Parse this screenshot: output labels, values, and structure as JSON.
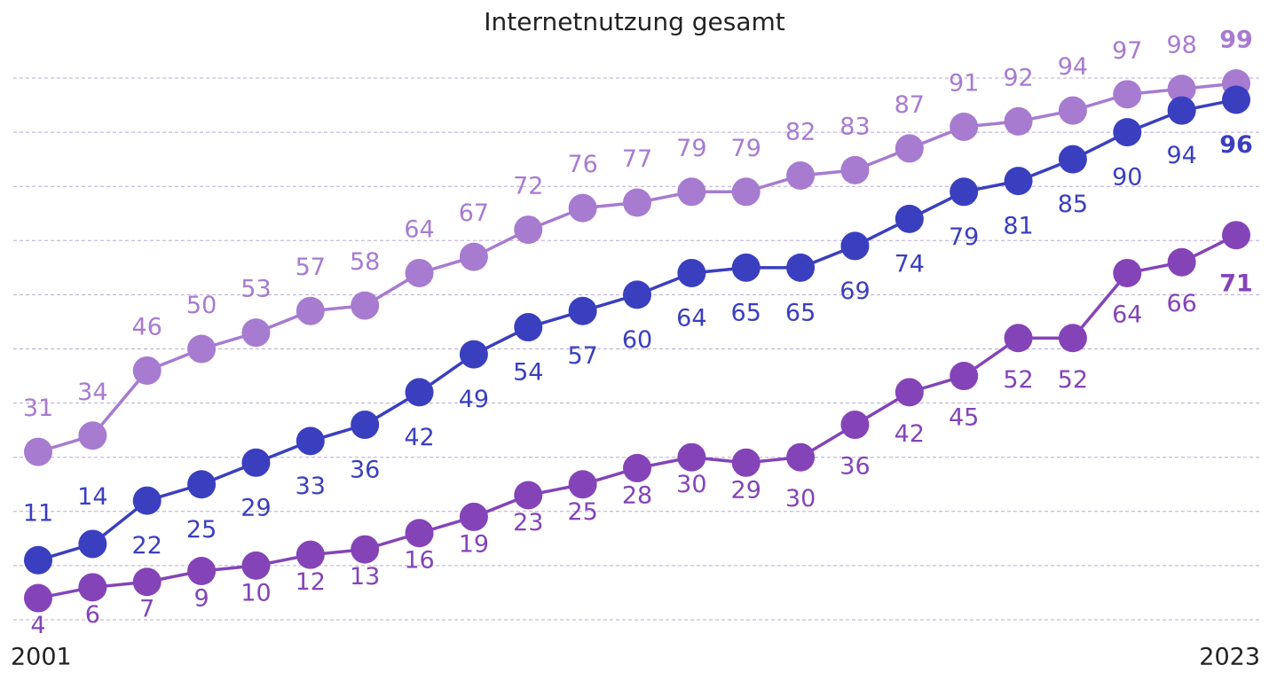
{
  "chart_data": {
    "type": "line",
    "title": "Internetnutzung gesamt",
    "categories": [
      "2001",
      null,
      null,
      null,
      null,
      null,
      null,
      null,
      null,
      null,
      null,
      null,
      null,
      null,
      null,
      null,
      null,
      null,
      null,
      null,
      null,
      null,
      "2023"
    ],
    "series": [
      {
        "color": "#a77bd0",
        "values": [
          31,
          34,
          46,
          50,
          53,
          57,
          58,
          64,
          67,
          72,
          76,
          77,
          79,
          79,
          82,
          83,
          87,
          91,
          92,
          94,
          97,
          98,
          99
        ]
      },
      {
        "color": "#3a3fbf",
        "values": [
          11,
          14,
          22,
          25,
          29,
          33,
          36,
          42,
          49,
          54,
          57,
          60,
          64,
          65,
          65,
          69,
          74,
          79,
          81,
          85,
          90,
          94,
          96
        ]
      },
      {
        "color": "#8444b8",
        "values": [
          4,
          6,
          7,
          9,
          10,
          12,
          13,
          16,
          19,
          23,
          25,
          28,
          30,
          29,
          30,
          36,
          42,
          45,
          52,
          52,
          64,
          66,
          71
        ]
      }
    ],
    "ylim": [
      0,
      100
    ],
    "yticks": [
      0,
      10,
      20,
      30,
      40,
      50,
      60,
      70,
      80,
      90,
      100
    ],
    "grid": true
  }
}
